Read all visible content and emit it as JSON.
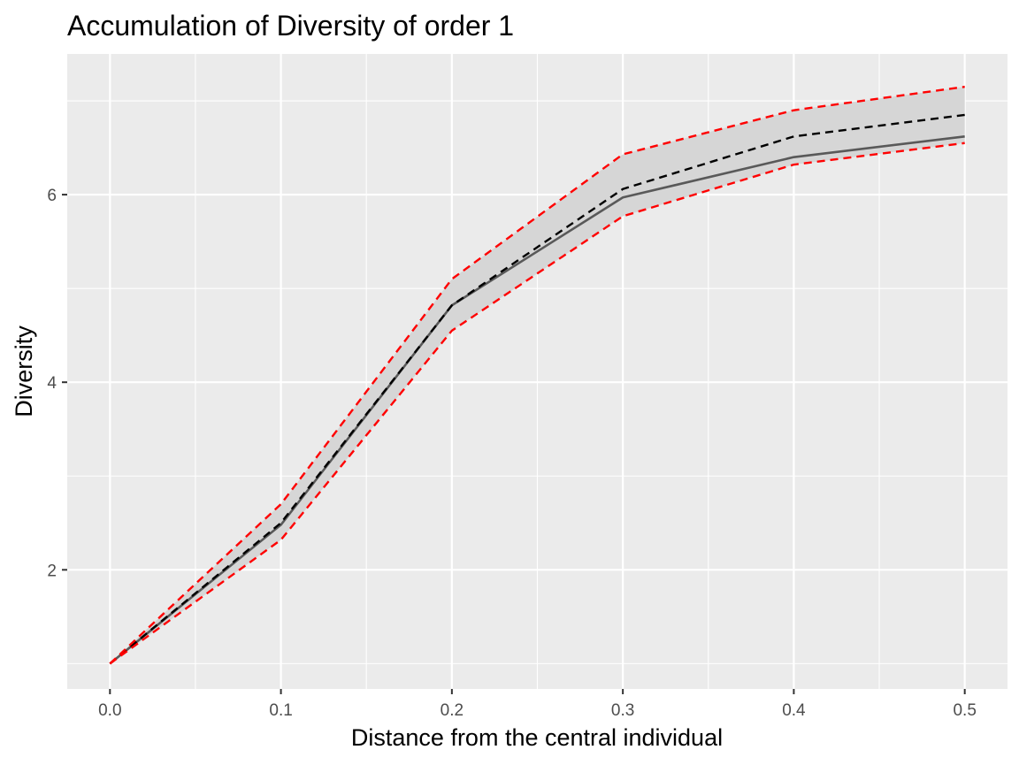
{
  "chart_data": {
    "type": "line",
    "title": "Accumulation of Diversity of order 1",
    "xlabel": "Distance from the central individual",
    "ylabel": "Diversity",
    "xlim": [
      -0.025,
      0.525
    ],
    "ylim": [
      0.73,
      7.5
    ],
    "x_ticks": [
      "0.0",
      "0.1",
      "0.2",
      "0.3",
      "0.4",
      "0.5"
    ],
    "y_ticks": [
      "2",
      "4",
      "6"
    ],
    "grid": true,
    "legend": "none",
    "colors": {
      "panel_background": "#ebebeb",
      "grid": "#ffffff",
      "envelope_fill": "#d6d6d6",
      "observed_line": "#595959",
      "expected_line": "#000000",
      "envelope_bounds": "#ff0000"
    },
    "x": [
      0.0,
      0.1,
      0.2,
      0.3,
      0.4,
      0.5
    ],
    "series": [
      {
        "key": "upper",
        "values": [
          1.0,
          2.7,
          5.1,
          6.43,
          6.9,
          7.15
        ],
        "style": "dashed",
        "color": "#ff0000"
      },
      {
        "key": "lower",
        "values": [
          1.0,
          2.32,
          4.55,
          5.77,
          6.32,
          6.55
        ],
        "style": "dashed",
        "color": "#ff0000"
      },
      {
        "key": "observed",
        "values": [
          1.0,
          2.48,
          4.82,
          5.97,
          6.4,
          6.62
        ],
        "style": "solid",
        "color": "#595959"
      },
      {
        "key": "expected",
        "values": [
          1.0,
          2.5,
          4.82,
          6.06,
          6.62,
          6.85
        ],
        "style": "dashed",
        "color": "#000000"
      }
    ]
  }
}
